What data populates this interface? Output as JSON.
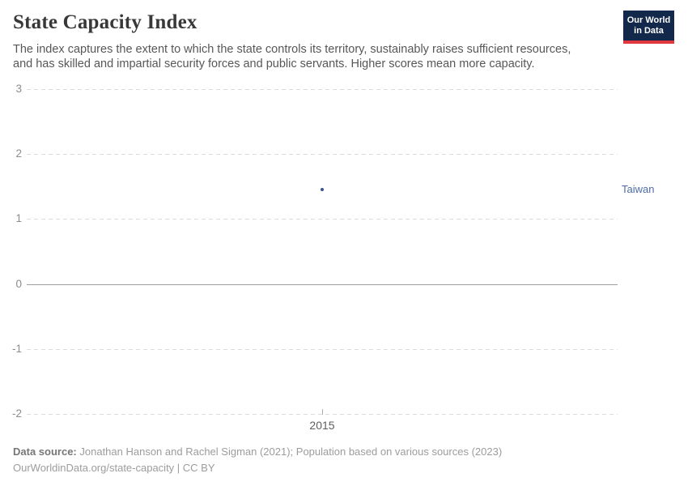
{
  "header": {
    "title": "State Capacity Index",
    "subtitle_lines": [
      "The index captures the extent to which the state controls its territory, sustainably raises sufficient resources,",
      "and has skilled and impartial security forces and public servants. Higher scores mean more capacity."
    ],
    "logo": {
      "line1": "Our World",
      "line2": "in Data",
      "bg_color": "#12294b",
      "bar_color": "#e0383e"
    }
  },
  "chart_data": {
    "type": "scatter",
    "title": "State Capacity Index",
    "series": [
      {
        "name": "Taiwan",
        "points": [
          {
            "x": 2015,
            "y": 1.45
          }
        ],
        "point_color": "#3b5589",
        "label_color": "#4e6ba5"
      }
    ],
    "x_ticks": [
      "2015"
    ],
    "y_ticks": [
      3,
      2,
      1,
      0,
      -1,
      -2
    ],
    "ylim": [
      -2,
      3
    ],
    "xlabel": "",
    "ylabel": "",
    "grid": "horizontal dashed gridlines, solid line at zero",
    "legend_position": "entity label at right of point row"
  },
  "footer": {
    "data_source_label": "Data source:",
    "data_source_text": "Jonathan Hanson and Rachel Sigman (2021); Population based on various sources (2023)",
    "license_line": "OurWorldinData.org/state-capacity | CC BY"
  },
  "colors": {
    "title": "#383838",
    "subtitle": "#575757",
    "axis_label": "#8c8c8c",
    "gridline": "#dcdcdc",
    "zero_line": "#9e9e9e",
    "x_tick_label": "#5e5e5e",
    "point": "#3b5589",
    "entity_label": "#4e6ba5",
    "footer_text": "#9c9c9c"
  }
}
